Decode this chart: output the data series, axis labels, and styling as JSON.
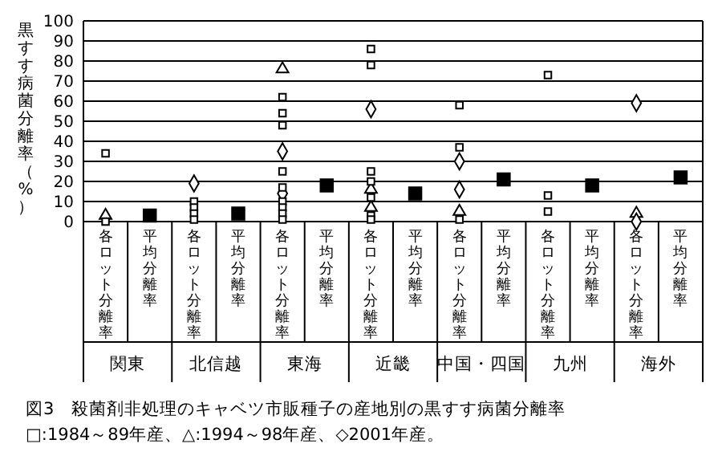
{
  "chart_data": {
    "type": "scatter",
    "title": "図3　殺菌剤非処理のキャベツ市販種子の産地別の黒すす病菌分離率",
    "subtitle": "□:1984～89年産、△:1994～98年産、◇2001年産。",
    "ylabel": "黒すす病菌分離率（%）",
    "categories": [
      "各ロット分離率",
      "平均分離率",
      "各ロット分離率",
      "平均分離率",
      "各ロット分離率",
      "平均分離率",
      "各ロット分離率",
      "平均分離率",
      "各ロット分離率",
      "平均分離率",
      "各ロット分離率",
      "平均分離率",
      "各ロット分離率",
      "平均分離率"
    ],
    "annotations": [
      "関東",
      "北信越",
      "東海",
      "近畿",
      "中国・四国",
      "九州",
      "海外"
    ],
    "ylim": [
      0,
      100
    ],
    "yticks": [
      0,
      10,
      20,
      30,
      40,
      50,
      60,
      70,
      80,
      90,
      100
    ],
    "grid": "y",
    "series": [
      {
        "marker": "square",
        "values": [
          34,
          null,
          10,
          null,
          62,
          null,
          86,
          null,
          58,
          null,
          73,
          null,
          null,
          null
        ]
      },
      {
        "marker": "square",
        "values": [
          0,
          null,
          7,
          null,
          54,
          null,
          78,
          null,
          37,
          null,
          13,
          null,
          null,
          null
        ]
      },
      {
        "marker": "square",
        "values": [
          null,
          null,
          4,
          null,
          48,
          null,
          25,
          null,
          1,
          null,
          5,
          null,
          null,
          null
        ]
      },
      {
        "marker": "square",
        "values": [
          null,
          null,
          1,
          null,
          25,
          null,
          20,
          null,
          null,
          null,
          null,
          null,
          null,
          null
        ]
      },
      {
        "marker": "square",
        "values": [
          null,
          null,
          null,
          null,
          17,
          null,
          12,
          null,
          null,
          null,
          null,
          null,
          null,
          null
        ]
      },
      {
        "marker": "square",
        "values": [
          null,
          null,
          null,
          null,
          10,
          null,
          3,
          null,
          null,
          null,
          null,
          null,
          null,
          null
        ]
      },
      {
        "marker": "square",
        "values": [
          null,
          null,
          null,
          null,
          7,
          null,
          1,
          null,
          null,
          null,
          null,
          null,
          null,
          null
        ]
      },
      {
        "marker": "square",
        "values": [
          null,
          null,
          null,
          null,
          4,
          null,
          null,
          null,
          null,
          null,
          null,
          null,
          null,
          null
        ]
      },
      {
        "marker": "square",
        "values": [
          null,
          null,
          null,
          null,
          1,
          null,
          null,
          null,
          null,
          null,
          null,
          null,
          null,
          null
        ]
      },
      {
        "marker": "triangle",
        "values": [
          3,
          null,
          null,
          null,
          76,
          null,
          16,
          null,
          5,
          null,
          null,
          null,
          4,
          null
        ]
      },
      {
        "marker": "triangle",
        "values": [
          null,
          null,
          null,
          null,
          null,
          null,
          7,
          null,
          null,
          null,
          null,
          null,
          null,
          null
        ]
      },
      {
        "marker": "diamond",
        "values": [
          null,
          null,
          19,
          null,
          35,
          null,
          56,
          null,
          30,
          null,
          null,
          null,
          59,
          null
        ]
      },
      {
        "marker": "diamond",
        "values": [
          null,
          null,
          null,
          null,
          14,
          null,
          null,
          null,
          16,
          null,
          null,
          null,
          0,
          null
        ]
      },
      {
        "marker": "square",
        "color": "#000000",
        "values": [
          null,
          3,
          null,
          4,
          null,
          18,
          null,
          14,
          null,
          21,
          null,
          18,
          null,
          22
        ]
      }
    ]
  }
}
